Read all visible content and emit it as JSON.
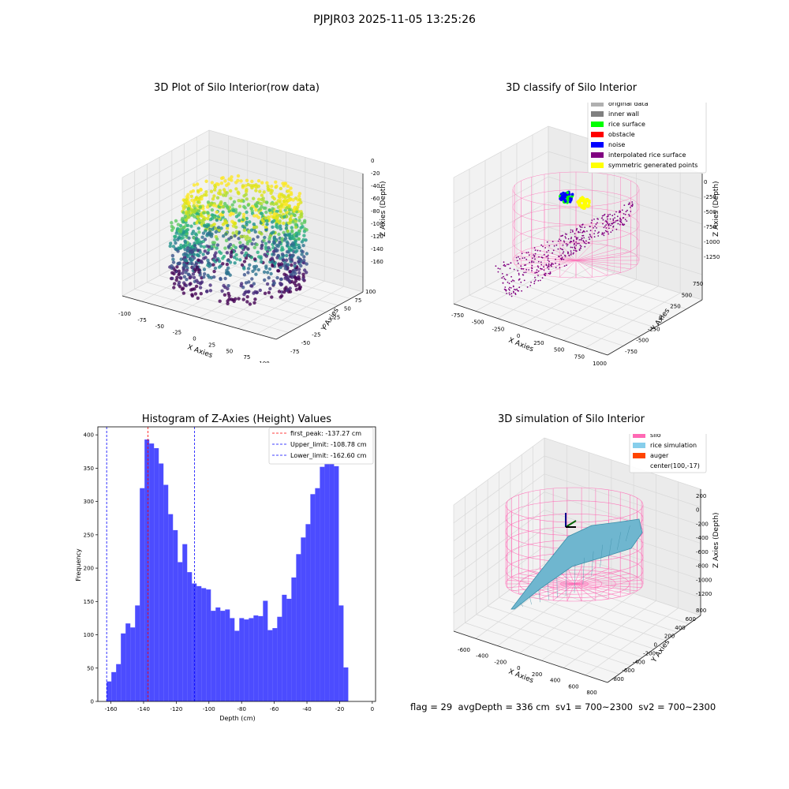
{
  "figure": {
    "suptitle": "PJPJR03 2025-11-05 13:25:26",
    "footer": "flag = 29  avgDepth = 336 cm  sv1 = 700~2300  sv2 = 700~2300"
  },
  "panels": {
    "raw": {
      "title": "3D Plot of Silo Interior(row data)",
      "xlabel": "X Axies",
      "ylabel": "Y Axies",
      "zlabel": "Z Axies (Depth)",
      "xticks": [
        "-100",
        "-75",
        "-50",
        "-25",
        "0",
        "25",
        "50",
        "75",
        "100"
      ],
      "yticks": [
        "-75",
        "-50",
        "-25",
        "0",
        "25",
        "50",
        "75",
        "100"
      ],
      "zticks": [
        "0",
        "-20",
        "-40",
        "-60",
        "-80",
        "-100",
        "-120",
        "-140",
        "-160"
      ]
    },
    "classify": {
      "title": "3D classify of Silo Interior",
      "xlabel": "X Axies",
      "ylabel": "Y Axies",
      "zlabel": "Z Axies (Depth)",
      "xticks": [
        "-750",
        "-500",
        "-250",
        "0",
        "250",
        "500",
        "750",
        "1000"
      ],
      "yticks": [
        "-750",
        "-500",
        "-250",
        "0",
        "250",
        "500",
        "750"
      ],
      "zticks": [
        "0",
        "-250",
        "-500",
        "-750",
        "-1000",
        "-1250"
      ],
      "legend": [
        {
          "label": "original data",
          "color": "#b0b0b0"
        },
        {
          "label": "inner wall",
          "color": "#808080"
        },
        {
          "label": "rice surface",
          "color": "#00ff00"
        },
        {
          "label": "obstacle",
          "color": "#ff0000"
        },
        {
          "label": "noise",
          "color": "#0000ff"
        },
        {
          "label": "interpolated rice surface",
          "color": "#800080"
        },
        {
          "label": "symmetric generated points",
          "color": "#ffff00"
        }
      ]
    },
    "simulation": {
      "title": "3D simulation of Silo Interior",
      "xlabel": "X Axies",
      "ylabel": "Y Axies",
      "zlabel": "Z Axies (Depth)",
      "xticks": [
        "-600",
        "-400",
        "-200",
        "0",
        "200",
        "400",
        "600",
        "800"
      ],
      "yticks": [
        "-800",
        "-600",
        "-400",
        "-200",
        "0",
        "200",
        "400",
        "600",
        "800"
      ],
      "zticks": [
        "200",
        "0",
        "-200",
        "-400",
        "-600",
        "-800",
        "-1000",
        "-1200"
      ],
      "legend": [
        {
          "label": "silo",
          "color": "#ff69b4"
        },
        {
          "label": "rice simulation",
          "color": "#87ceeb"
        },
        {
          "label": "auger",
          "color": "#ff4500"
        },
        {
          "label": "center(100,-17)",
          "color": ""
        }
      ]
    }
  },
  "chart_data": [
    {
      "type": "bar",
      "title": "Histogram of Z-Axies (Height) Values",
      "xlabel": "Depth (cm)",
      "ylabel": "Frequency",
      "xlim": [
        -168,
        2
      ],
      "ylim": [
        0,
        412
      ],
      "xticks": [
        -160,
        -140,
        -120,
        -100,
        -80,
        -60,
        -40,
        -20,
        0
      ],
      "yticks": [
        0,
        50,
        100,
        150,
        200,
        250,
        300,
        350,
        400
      ],
      "bar_color": "#0000ff",
      "bin_start": -162.6,
      "bin_width": 2.9,
      "values": [
        30,
        44,
        56,
        102,
        117,
        111,
        144,
        320,
        393,
        387,
        380,
        357,
        325,
        281,
        257,
        209,
        236,
        194,
        177,
        173,
        170,
        168,
        136,
        141,
        136,
        138,
        125,
        106,
        125,
        123,
        125,
        129,
        128,
        151,
        107,
        110,
        127,
        160,
        154,
        186,
        221,
        246,
        266,
        311,
        320,
        352,
        364,
        385,
        353,
        144,
        51
      ],
      "vlines": [
        {
          "label": "first_peak: -137.27 cm",
          "x": -137.27,
          "color": "#ff0000"
        },
        {
          "label": "Upper_limit: -108.78 cm",
          "x": -108.78,
          "color": "#0000ff"
        },
        {
          "label": "Lower_limit: -162.60 cm",
          "x": -162.6,
          "color": "#0000ff"
        }
      ]
    }
  ]
}
